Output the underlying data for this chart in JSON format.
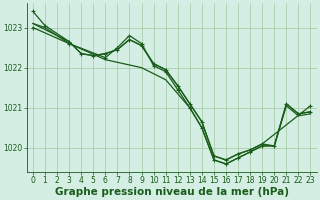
{
  "background_color": "#d4eee4",
  "grid_color": "#a0c8a0",
  "line_color": "#1a5c1a",
  "tick_fontsize": 5.5,
  "title_fontsize": 7.5,
  "xlim": [
    -0.5,
    23.5
  ],
  "ylim": [
    1019.4,
    1023.6
  ],
  "yticks": [
    1020,
    1021,
    1022,
    1023
  ],
  "xticks": [
    0,
    1,
    2,
    3,
    4,
    5,
    6,
    7,
    8,
    9,
    10,
    11,
    12,
    13,
    14,
    15,
    16,
    17,
    18,
    19,
    20,
    21,
    22,
    23
  ],
  "title": "Graphe pression niveau de la mer (hPa)",
  "series": [
    {
      "x": [
        0,
        1,
        3,
        4,
        5,
        6,
        7,
        8,
        9,
        10,
        11,
        12,
        13,
        14,
        15,
        16,
        17,
        18,
        19,
        23
      ],
      "y": [
        1023.4,
        1023.05,
        1022.65,
        1022.35,
        1022.3,
        1022.35,
        1022.45,
        1022.7,
        1022.55,
        1022.1,
        1021.95,
        1021.55,
        1021.1,
        1020.65,
        1019.8,
        1019.7,
        1019.85,
        1019.95,
        1020.1,
        1021.05
      ],
      "marker": true,
      "lw": 0.9
    },
    {
      "x": [
        0,
        3,
        4,
        5,
        6,
        7,
        8,
        9,
        10,
        11,
        12,
        13,
        14,
        15,
        16,
        17,
        18,
        19,
        20,
        21,
        22,
        23
      ],
      "y": [
        1023.1,
        1022.65,
        1022.35,
        1022.3,
        1022.35,
        1022.45,
        1022.7,
        1022.55,
        1022.1,
        1021.95,
        1021.55,
        1021.1,
        1020.65,
        1019.8,
        1019.7,
        1019.85,
        1019.95,
        1020.1,
        1020.05,
        1021.05,
        1020.8,
        1020.85
      ],
      "marker": false,
      "lw": 0.9
    },
    {
      "x": [
        0,
        3,
        6,
        7,
        8,
        9,
        10,
        11,
        12,
        13,
        14,
        15,
        16,
        17,
        18,
        19,
        20,
        21,
        22,
        23
      ],
      "y": [
        1023.0,
        1022.6,
        1022.25,
        1022.5,
        1022.8,
        1022.6,
        1022.05,
        1021.9,
        1021.45,
        1021.0,
        1020.5,
        1019.7,
        1019.6,
        1019.75,
        1019.9,
        1020.05,
        1020.05,
        1021.1,
        1020.85,
        1020.9
      ],
      "marker": true,
      "lw": 0.9
    },
    {
      "x": [
        0,
        1,
        3,
        6,
        9,
        11,
        13,
        14,
        15,
        16,
        17,
        18,
        19,
        20,
        21,
        22,
        23
      ],
      "y": [
        1023.1,
        1023.0,
        1022.6,
        1022.2,
        1022.0,
        1021.7,
        1021.0,
        1020.5,
        1019.7,
        1019.6,
        1019.75,
        1019.9,
        1020.05,
        1020.05,
        1021.1,
        1020.85,
        1020.9
      ],
      "marker": false,
      "lw": 0.9
    }
  ]
}
